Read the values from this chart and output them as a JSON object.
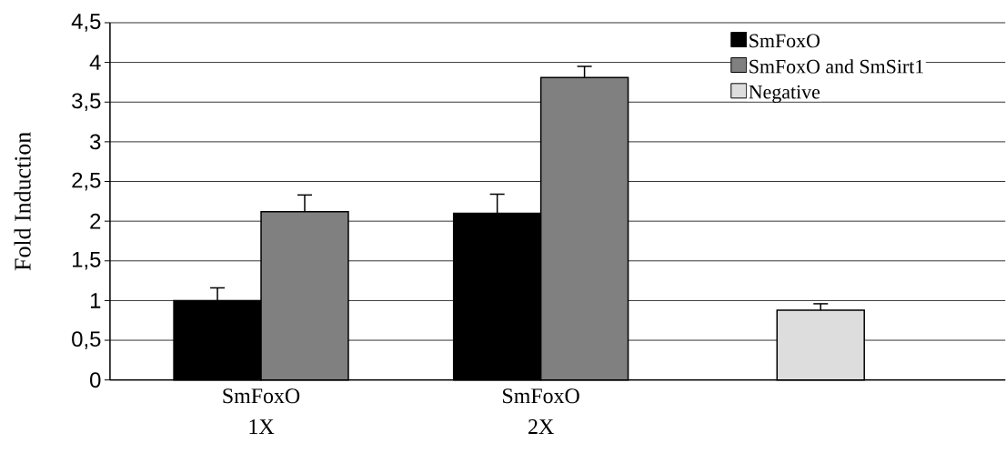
{
  "chart_data": {
    "type": "bar",
    "ylabel": "Fold Induction",
    "categories": [
      "SmFoxO 1X",
      "SmFoxO 2X",
      null
    ],
    "series": [
      {
        "name": "SmFoxO",
        "color": "#000000",
        "values": [
          1.0,
          2.1,
          null
        ],
        "errors": [
          0.16,
          0.24,
          null
        ]
      },
      {
        "name": "SmFoxO and SmSirt1",
        "color": "#808080",
        "values": [
          2.12,
          3.81,
          null
        ],
        "errors": [
          0.21,
          0.14,
          null
        ]
      },
      {
        "name": "Negative",
        "color": "#dddddd",
        "values": [
          null,
          null,
          0.88
        ],
        "errors": [
          null,
          null,
          0.08
        ]
      }
    ],
    "ylim": [
      0,
      4.5
    ],
    "yticks": [
      0,
      {
        "value": 0.5,
        "label": "0,5"
      },
      1,
      {
        "value": 1.5,
        "label": "1,5"
      },
      2,
      {
        "value": 2.5,
        "label": "2,5"
      },
      3,
      {
        "value": 3.5,
        "label": "3,5"
      },
      4,
      {
        "value": 4.5,
        "label": "4,5"
      }
    ],
    "grid": "y",
    "legend": "top right"
  }
}
